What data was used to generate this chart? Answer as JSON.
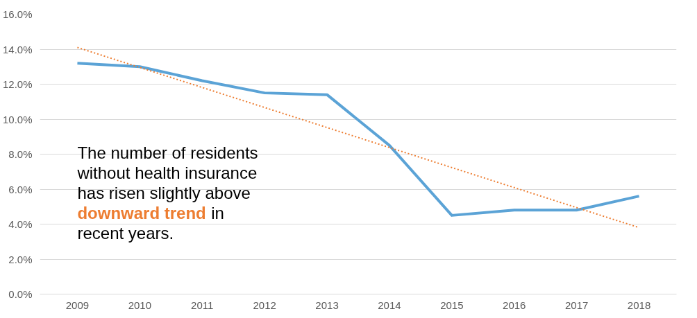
{
  "chart_data": {
    "type": "line",
    "categories": [
      "2009",
      "2010",
      "2011",
      "2012",
      "2013",
      "2014",
      "2015",
      "2016",
      "2017",
      "2018"
    ],
    "series": [
      {
        "color": "#5ba3d6",
        "values": [
          13.2,
          13.0,
          12.2,
          11.5,
          11.4,
          8.5,
          4.5,
          4.8,
          4.8,
          5.6
        ]
      },
      {
        "type": "line",
        "color": "#ed7d31",
        "line_style": "dotted",
        "values": [
          14.1,
          null,
          null,
          null,
          null,
          null,
          null,
          null,
          null,
          3.8
        ]
      }
    ],
    "ylim": [
      0,
      16
    ],
    "yticks": [
      {
        "value": 0,
        "label": "0.0%"
      },
      {
        "value": 2,
        "label": "2.0%"
      },
      {
        "value": 4,
        "label": "4.0%"
      },
      {
        "value": 6,
        "label": "6.0%"
      },
      {
        "value": 8,
        "label": "8.0%"
      },
      {
        "value": 10,
        "label": "10.0%"
      },
      {
        "value": 12,
        "label": "12.0%"
      },
      {
        "value": 14,
        "label": "14.0%"
      },
      {
        "value": 16,
        "label": "16.0%"
      }
    ],
    "grid": "y",
    "marker": "none",
    "line_style": "solid",
    "annotations": [
      "The number of residents without health insurance has risen slightly above",
      "downward trend",
      "in recent years."
    ]
  }
}
